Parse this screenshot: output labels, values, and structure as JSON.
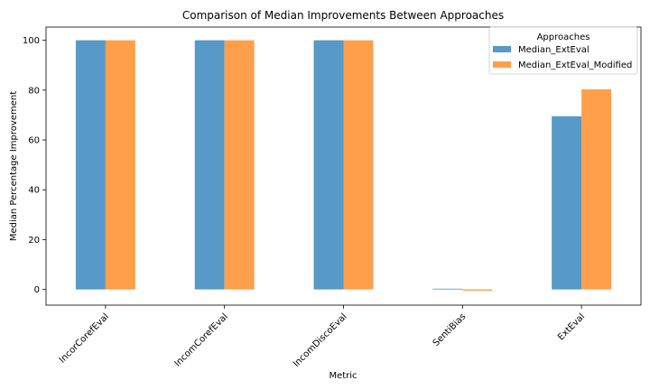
{
  "chart_data": {
    "type": "bar",
    "title": "Comparison of Median Improvements Between Approaches",
    "xlabel": "Metric",
    "ylabel": "Median Percentage Improvement",
    "categories": [
      "IncorCorefEval",
      "IncomCorefEval",
      "IncomDiscoEval",
      "SentiBias",
      "ExtEval"
    ],
    "series": [
      {
        "name": "Median_ExtEval",
        "color": "#5799c7",
        "values": [
          100,
          100,
          100,
          0.3,
          69.5
        ]
      },
      {
        "name": "Median_ExtEval_Modified",
        "color": "#ff9f4a",
        "values": [
          100,
          100,
          100,
          -0.5,
          80.3
        ]
      }
    ],
    "ylim": [
      -6.3,
      105.3
    ],
    "yticks": [
      0,
      20,
      40,
      60,
      80,
      100
    ],
    "grid": false,
    "legend": {
      "title": "Approaches",
      "placement": "top-right"
    }
  }
}
